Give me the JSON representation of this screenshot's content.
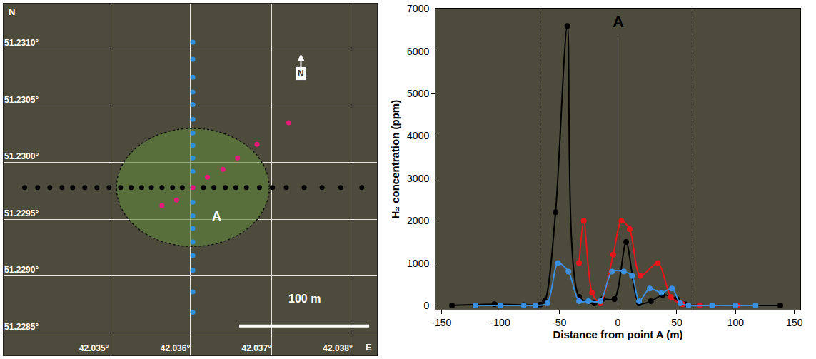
{
  "chart_data": [
    {
      "type": "map",
      "x_label": "E",
      "y_label": "N",
      "xlim": [
        42.0337,
        42.0383
      ],
      "ylim": [
        51.2283,
        51.2314
      ],
      "xticks": [
        {
          "value": 42.035,
          "label": "42.035°"
        },
        {
          "value": 42.036,
          "label": "42.036°"
        },
        {
          "value": 42.037,
          "label": "42.037°"
        },
        {
          "value": 42.038,
          "label": "42.038°"
        }
      ],
      "yticks": [
        {
          "value": 51.2285,
          "label": "51.2285°"
        },
        {
          "value": 51.229,
          "label": "51.2290°"
        },
        {
          "value": 51.2295,
          "label": "51.2295°"
        },
        {
          "value": 51.23,
          "label": "51.2300°"
        },
        {
          "value": 51.2305,
          "label": "51.2305°"
        },
        {
          "value": 51.231,
          "label": "51.2310°"
        }
      ],
      "grid": true,
      "series": [
        {
          "color": "#000000",
          "marker": "circle",
          "x": [
            42.03396,
            42.03412,
            42.03427,
            42.03442,
            42.03455,
            42.0347,
            42.03485,
            42.035,
            42.03514,
            42.03527,
            42.0354,
            42.03552,
            42.03565,
            42.03578,
            42.0359,
            42.03603,
            42.03616,
            42.03629,
            42.03643,
            42.03656,
            42.03669,
            42.03685,
            42.03701,
            42.03718,
            42.0374,
            42.03762,
            42.03785,
            42.03811
          ],
          "y": [
            51.22978,
            51.22978,
            51.22978,
            51.22978,
            51.22978,
            51.22978,
            51.22978,
            51.22978,
            51.22978,
            51.22978,
            51.22978,
            51.22978,
            51.22978,
            51.22978,
            51.22978,
            51.22978,
            51.22978,
            51.22978,
            51.22978,
            51.22978,
            51.22978,
            51.22978,
            51.22978,
            51.22978,
            51.22978,
            51.22978,
            51.22978,
            51.22978
          ]
        },
        {
          "color": "#2f8fd8",
          "marker": "circle",
          "x": [
            42.03603,
            42.03603,
            42.03603,
            42.03603,
            42.03603,
            42.03603,
            42.03603,
            42.03603,
            42.03603,
            42.03603,
            42.03603,
            42.03603,
            42.03603,
            42.03603,
            42.03603,
            42.03603,
            42.03603,
            42.03603,
            42.03603
          ],
          "y": [
            51.23106,
            51.23091,
            51.23075,
            51.23062,
            51.23051,
            51.23038,
            51.23026,
            51.23015,
            51.23004,
            51.22992,
            51.22978,
            51.22965,
            51.22953,
            51.22942,
            51.2293,
            51.22918,
            51.22905,
            51.22886,
            51.22868
          ]
        },
        {
          "color": "#e8197a",
          "marker": "circle",
          "x": [
            42.03565,
            42.03583,
            42.03603,
            42.03621,
            42.0364,
            42.03658,
            42.03682,
            42.03721
          ],
          "y": [
            51.22962,
            51.22967,
            51.22978,
            51.22987,
            51.22994,
            51.23004,
            51.23016,
            51.23035
          ]
        }
      ],
      "circle": {
        "center": [
          42.03603,
          51.22978
        ],
        "radius_x": 0.00094,
        "radius_y": 0.00052
      },
      "point_label": {
        "text": "A",
        "x": 42.03625,
        "y": 51.2296
      },
      "scale_bar": {
        "label": "100 m",
        "x": [
          42.0366,
          42.0382
        ],
        "y": 51.22856,
        "label_y": 51.2288
      },
      "north_arrow": {
        "label": "N",
        "x": 42.03736,
        "y": 51.23097
      }
    },
    {
      "type": "line",
      "x_label": "Distance from point A (m)",
      "y_label": "H₂ concentration (ppm)",
      "xlim": [
        -155,
        155
      ],
      "ylim": [
        -100,
        7000
      ],
      "xticks": [
        -150,
        -100,
        -50,
        0,
        50,
        100,
        150
      ],
      "yticks": [
        0,
        1000,
        2000,
        3000,
        4000,
        5000,
        6000,
        7000
      ],
      "grid": false,
      "series": [
        {
          "color": "#000000",
          "marker": "circle",
          "line_style": "spline",
          "x": [
            -141,
            -105,
            -80,
            -66,
            -62,
            -53,
            -43,
            -33,
            -20,
            -13,
            -3,
            7,
            18,
            28,
            38,
            50,
            57,
            70,
            100,
            138
          ],
          "y": [
            0,
            30,
            10,
            20,
            100,
            2200,
            6600,
            200,
            50,
            150,
            150,
            1500,
            50,
            100,
            250,
            150,
            30,
            0,
            0,
            0
          ]
        },
        {
          "color": "#e8161b",
          "marker": "circle",
          "line_style": "spline",
          "x": [
            -33,
            -29,
            -22,
            -15,
            -4,
            3,
            10,
            19,
            34,
            45,
            55,
            70,
            102
          ],
          "y": [
            1000,
            2000,
            300,
            50,
            1200,
            2000,
            1800,
            700,
            1000,
            200,
            30,
            0,
            0
          ]
        },
        {
          "color": "#3b8fe0",
          "marker": "circle",
          "line_style": "spline",
          "x": [
            -121,
            -100,
            -80,
            -70,
            -60,
            -51,
            -42,
            -33,
            -25,
            -15,
            -5,
            5,
            12,
            18,
            27,
            37,
            46,
            53,
            60,
            80,
            100,
            117
          ],
          "y": [
            0,
            0,
            0,
            0,
            50,
            1000,
            800,
            100,
            100,
            100,
            800,
            800,
            700,
            100,
            400,
            300,
            400,
            50,
            0,
            0,
            0,
            0
          ]
        }
      ],
      "reference_lines": [
        {
          "x": -66,
          "line_style": "dot"
        },
        {
          "x": 63,
          "line_style": "dot"
        },
        {
          "x": 0,
          "y": [
            0,
            6300
          ],
          "line_style": "solid",
          "label": "A",
          "label_y": 6700
        }
      ]
    }
  ]
}
